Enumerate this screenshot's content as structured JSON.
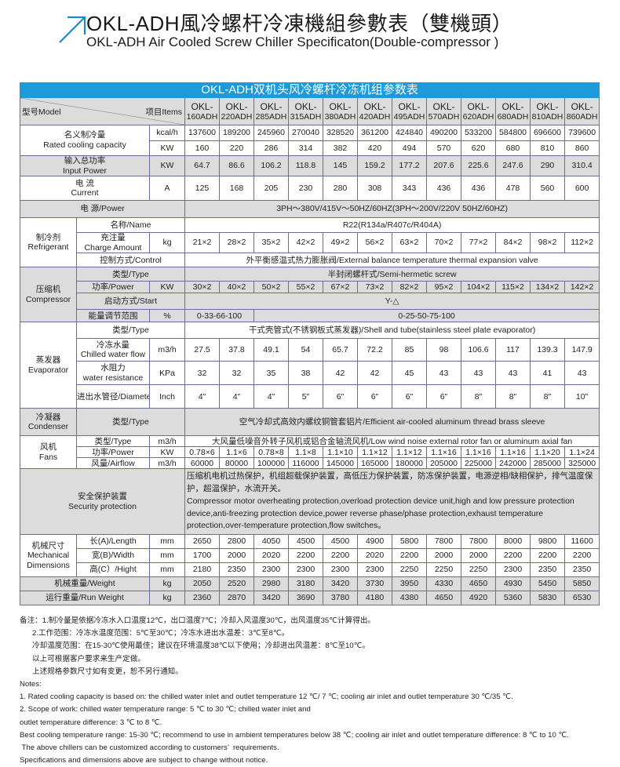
{
  "header": {
    "title_cn": "OKL-ADH風冷螺杆冷凍機組參數表（雙機頭）",
    "title_en": "OKL-ADH Air Cooled Screw Chiller Specificaton(Double-compressor )",
    "accent_color": "#1e9ad8"
  },
  "table": {
    "title": "OKL-ADH双机头风冷螺杆冷冻机组参数表",
    "model_label": "型号Model",
    "items_label": "项目Items",
    "models": [
      "OKL-160ADH",
      "OKL-220ADH",
      "OKL-285ADH",
      "OKL-315ADH",
      "OKL-380ADH",
      "OKL-420ADH",
      "OKL-495ADH",
      "OKL-570ADH",
      "OKL-620ADH",
      "OKL-680ADH",
      "OKL-810ADH",
      "OKL-860ADH"
    ],
    "cooling": {
      "label_cn": "名义制冷量",
      "label_en": "Rated cooling capacity",
      "unit1": "kcal/h",
      "values1": [
        "137600",
        "189200",
        "245960",
        "270040",
        "328520",
        "361200",
        "424840",
        "490200",
        "533200",
        "584800",
        "696600",
        "739600"
      ],
      "unit2": "KW",
      "values2": [
        "160",
        "220",
        "286",
        "314",
        "382",
        "420",
        "494",
        "570",
        "620",
        "680",
        "810",
        "860"
      ]
    },
    "input_power": {
      "label_cn": "输入总功率",
      "label_en": "Input Power",
      "unit": "KW",
      "values": [
        "64.7",
        "86.6",
        "106.2",
        "118.8",
        "145",
        "159.2",
        "177.2",
        "207.6",
        "225.6",
        "247.6",
        "290",
        "310.4"
      ]
    },
    "current": {
      "label_cn": "电  流",
      "label_en": "Current",
      "unit": "A",
      "values": [
        "125",
        "168",
        "205",
        "230",
        "280",
        "308",
        "343",
        "436",
        "436",
        "478",
        "560",
        "600"
      ]
    },
    "power": {
      "label": "电    源/Power",
      "value": "3PH～380V/415V～50HZ/60HZ(3PH～200V/220V  50HZ/60HZ)"
    },
    "refrigerant": {
      "label_cn": "制冷剂",
      "label_en": "Refrigerant",
      "name_label": "名称/Name",
      "name_value": "R22(R134a/R407c/R404A)",
      "charge_label_cn": "充注量",
      "charge_label_en": "Charge Amount",
      "charge_unit": "kg",
      "charge_values": [
        "21×2",
        "28×2",
        "35×2",
        "42×2",
        "49×2",
        "56×2",
        "63×2",
        "70×2",
        "77×2",
        "84×2",
        "98×2",
        "112×2"
      ],
      "control_label": "控制方式/Control",
      "control_value": "外平衡感温式热力膨胀阀/External balance temperature thermal expansion valve"
    },
    "compressor": {
      "label_cn": "压缩机",
      "label_en": "Compressor",
      "type_label": "类型/Type",
      "type_value": "半封闭螺杆式/Semi-hermetic screw",
      "power_label": "功率/Power",
      "power_unit": "KW",
      "power_values": [
        "30×2",
        "40×2",
        "50×2",
        "55×2",
        "67×2",
        "73×2",
        "82×2",
        "95×2",
        "104×2",
        "115×2",
        "134×2",
        "142×2"
      ],
      "start_label": "启动方式/Start",
      "start_value": "Y-△",
      "energy_label": "能量调节范围",
      "energy_unit": "%",
      "energy_value1": "0-33-66-100",
      "energy_value2": "0-25-50-75-100"
    },
    "evaporator": {
      "label_cn": "蒸发器",
      "label_en": "Evaporator",
      "type_label": "类型/Type",
      "type_value": "干式壳管式(不锈钢板式蒸发器)/Shell and tube(stainless steel plate evaporator)",
      "flow_label_cn": "冷冻水量",
      "flow_label_en": "Chilled water flow",
      "flow_unit": "m3/h",
      "flow_values": [
        "27.5",
        "37.8",
        "49.1",
        "54",
        "65.7",
        "72.2",
        "85",
        "98",
        "106.6",
        "117",
        "139.3",
        "147.9"
      ],
      "res_label_cn": "水阻力",
      "res_label_en": "water resistance",
      "res_unit": "KPa",
      "res_values": [
        "32",
        "32",
        "35",
        "38",
        "42",
        "42",
        "45",
        "43",
        "43",
        "43",
        "41",
        "43"
      ],
      "dia_label": "进出水管径/Diameter",
      "dia_unit": "Inch",
      "dia_values": [
        "4\"",
        "4\"",
        "4\"",
        "5\"",
        "6\"",
        "6\"",
        "6\"",
        "6\"",
        "8\"",
        "8\"",
        "8\"",
        "10\""
      ]
    },
    "condenser": {
      "label_cn": "冷凝器",
      "label_en": "Condenser",
      "type_label": "类型/Type",
      "type_value": "空气冷却式高效内螺纹铜管套铝片/Efficient air-cooled aluminum thread brass sleeve"
    },
    "fans": {
      "label_cn": "风机",
      "label_en": "Fans",
      "type_label": "类型/Type",
      "type_unit": "m3/h",
      "type_value": "大风量低噪音外转子风机或铝合金轴流风机/Low wind noise external rotor fan or aluminum axial fan",
      "power_label": "功率/Power",
      "power_unit": "KW",
      "power_values": [
        "0.78×6",
        "1.1×6",
        "0.78×8",
        "1.1×8",
        "1.1×10",
        "1.1×12",
        "1.1×12",
        "1.1×16",
        "1.1×16",
        "1.1×16",
        "1.1×20",
        "1.1×24"
      ],
      "airflow_label": "风量/Airflow",
      "airflow_unit": "m3/h",
      "airflow_values": [
        "60000",
        "80000",
        "100000",
        "116000",
        "145000",
        "165000",
        "180000",
        "205000",
        "225000",
        "242000",
        "285000",
        "325000"
      ]
    },
    "security": {
      "label_cn": "安全保护装置",
      "label_en": "Security protection",
      "value_cn": "压缩机电机过热保护，机组超载保护装置，高低压力保护装置，防冻保护装置，电源逆相/缺相保护，排气温度保护，超温保护，水流开关。",
      "value_en": "Compressor motor overheating protection,overload protection device unit,high and low pressure protection device,anti-freezing protection device,power reverse phase/phase protection,exhaust temperature protection,over-temperature protection,flow switches。"
    },
    "dimensions": {
      "label_cn": "机械尺寸",
      "label_en1": "Mechanical",
      "label_en2": "Dimensions",
      "length_label": "长(A)/Length",
      "width_label": "宽(B)/Width",
      "height_label": "高(C）/Hight",
      "unit": "mm",
      "length_values": [
        "2650",
        "2800",
        "4050",
        "4500",
        "4500",
        "4900",
        "5800",
        "7800",
        "7800",
        "8000",
        "9800",
        "11600"
      ],
      "width_values": [
        "1700",
        "2000",
        "2020",
        "2200",
        "2200",
        "2020",
        "2200",
        "2000",
        "2000",
        "2200",
        "2200",
        "2200"
      ],
      "height_values": [
        "2180",
        "2350",
        "2300",
        "2300",
        "2300",
        "2300",
        "2250",
        "2250",
        "2250",
        "2300",
        "2350",
        "2350"
      ]
    },
    "weight": {
      "label": "机械重量/Weight",
      "unit": "kg",
      "values": [
        "2050",
        "2520",
        "2980",
        "3180",
        "3420",
        "3730",
        "3950",
        "4330",
        "4650",
        "4930",
        "5450",
        "5850"
      ]
    },
    "run_weight": {
      "label": "运行重量/Run Weight",
      "unit": "kg",
      "values": [
        "2360",
        "2870",
        "3420",
        "3690",
        "3780",
        "4180",
        "4380",
        "4650",
        "4920",
        "5360",
        "5830",
        "6530"
      ]
    }
  },
  "notes": {
    "cn": [
      "备注：1.制冷量是依据冷冻水入口温度12℃，出口温度7℃；冷却入风温度30℃，出风温度35℃计算得出。",
      "2.工作范围：冷冻水温度范围：5℃至30℃；冷冻水进出水温差：3℃至8℃。",
      "冷却温度范围：在15-30℃使用最佳；建议在环境温度38℃以下使用；冷却进出风温差：8℃至10℃。",
      "以上可根据客户要求来生产定做。",
      "上述规格参数尺寸如有变更，恕不另行通知。"
    ],
    "en": [
      "Notes:",
      "1. Rated cooling capacity is based on: the chilled water inlet and outlet temperature 12 ℃/ 7 ℃; cooling air inlet and outlet temperature 30 ℃/35 ℃.",
      "2. Scope of work: chilled water temperature range: 5 ℃ to 30 ℃; chilled water inlet and",
      "outlet temperature difference: 3 ℃ to 8 ℃.",
      "Best cooling temperature range: 15-30 ℃; recommend to use in ambient temperatures below 38 ℃; cooling air inlet and outlet temperature difference: 8 ℃ to 10 ℃.",
      " The above chillers can be customized according to customers’  requirements.",
      "Specifications and dimensions above are subject to change without notice."
    ]
  }
}
